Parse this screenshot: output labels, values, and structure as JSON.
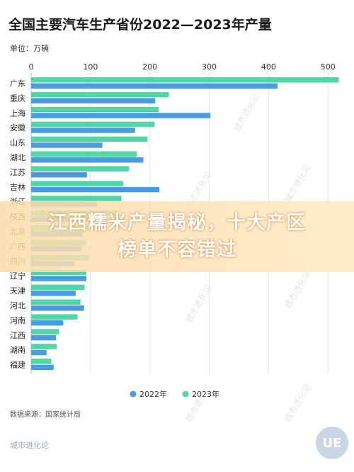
{
  "header": {
    "title": "全国主要汽车生产省份2022—2023年产量",
    "unit": "单位：万辆"
  },
  "footer": {
    "source": "数据来源：国家统计局",
    "brand": "城市进化论",
    "logo": "UE"
  },
  "banner": {
    "line1": "江西糯米产量揭秘，十大产区",
    "line2": "榜单不容错过"
  },
  "colors": {
    "s2022": "#4a9ce0",
    "s2023": "#52d6a5",
    "grid": "#e6e6e6",
    "axis": "#bbbbbb"
  },
  "chart_data": {
    "type": "bar",
    "orientation": "horizontal",
    "categories": [
      "广东",
      "重庆",
      "上海",
      "安徽",
      "山东",
      "湖北",
      "江苏",
      "吉林",
      "浙江",
      "陕西",
      "北京",
      "广西",
      "四川",
      "辽宁",
      "天津",
      "河北",
      "河南",
      "江西",
      "湖南",
      "福建"
    ],
    "series": [
      {
        "name": "2022年",
        "values": [
          415,
          209,
          302,
          175,
          120,
          189,
          94,
          216,
          111,
          100,
          87,
          85,
          73,
          93,
          75,
          89,
          54,
          42,
          26,
          38
        ]
      },
      {
        "name": "2023年",
        "values": [
          518,
          232,
          215,
          208,
          196,
          178,
          165,
          155,
          152,
          145,
          98,
          92,
          97,
          93,
          90,
          83,
          78,
          47,
          43,
          34
        ]
      }
    ],
    "xlim": [
      0,
      520
    ],
    "xticks": [
      0,
      100,
      200,
      300,
      400,
      500
    ],
    "grid": true,
    "legend_position": "bottom"
  }
}
